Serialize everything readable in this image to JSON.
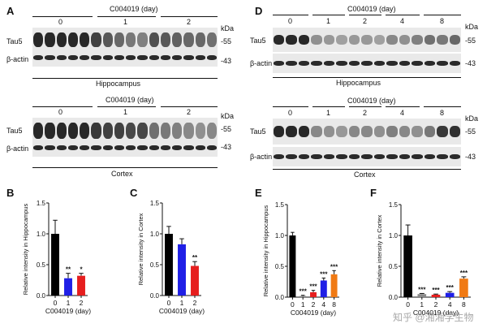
{
  "panels": {
    "A": {
      "letter": "A",
      "title": "C004019 (day)",
      "kda": "kDa",
      "protein": "Tau5",
      "loading": "β-actin",
      "mw_tau": "-55",
      "mw_actin": "-43",
      "blots": [
        {
          "region": "Hippocampus",
          "days": [
            "0",
            "1",
            "2"
          ],
          "tau_intensity": [
            1.0,
            1.0,
            1.0,
            1.0,
            1.0,
            0.85,
            0.7,
            0.6,
            0.5,
            0.45,
            0.75,
            0.7,
            0.65,
            0.6,
            0.6,
            0.55
          ]
        },
        {
          "region": "Cortex",
          "days": [
            "0",
            "1",
            "2"
          ],
          "tau_intensity": [
            1.0,
            1.0,
            1.0,
            1.0,
            1.0,
            0.9,
            0.85,
            0.85,
            0.8,
            0.8,
            0.55,
            0.5,
            0.45,
            0.4,
            0.35,
            0.4
          ]
        }
      ]
    },
    "D": {
      "letter": "D",
      "title": "C004019 (day)",
      "kda": "kDa",
      "protein": "Tau5",
      "loading": "β-actin",
      "mw_tau": "-55",
      "mw_actin": "-43",
      "blots": [
        {
          "region": "Hippocampus",
          "days": [
            "0",
            "1",
            "2",
            "4",
            "8"
          ],
          "tau_intensity": [
            1.0,
            1.0,
            1.0,
            0.35,
            0.3,
            0.25,
            0.3,
            0.3,
            0.25,
            0.4,
            0.35,
            0.45,
            0.55,
            0.5,
            0.6
          ]
        },
        {
          "region": "Cortex",
          "days": [
            "0",
            "1",
            "2",
            "4",
            "8"
          ],
          "tau_intensity": [
            1.0,
            1.0,
            1.0,
            0.4,
            0.35,
            0.3,
            0.4,
            0.4,
            0.35,
            0.45,
            0.4,
            0.35,
            0.5,
            0.9,
            0.95
          ]
        }
      ]
    }
  },
  "chart_data": [
    {
      "panel": "B",
      "type": "bar",
      "ylabel": "Relative intensity in Hippocampus",
      "xlabel": "C004019  (day)",
      "categories": [
        "0",
        "1",
        "2"
      ],
      "values": [
        1.0,
        0.28,
        0.32
      ],
      "errors": [
        0.22,
        0.08,
        0.04
      ],
      "colors": [
        "#000000",
        "#1f1fe6",
        "#e61e1e"
      ],
      "significance": [
        "",
        "**",
        "*"
      ],
      "ylim": [
        0,
        1.5
      ],
      "yticks": [
        "0.0",
        "0.5",
        "1.0",
        "1.5"
      ]
    },
    {
      "panel": "C",
      "type": "bar",
      "ylabel": "Relative intensity in Cortex",
      "xlabel": "C004019  (day)",
      "categories": [
        "0",
        "1",
        "2"
      ],
      "values": [
        1.0,
        0.83,
        0.48
      ],
      "errors": [
        0.12,
        0.09,
        0.07
      ],
      "colors": [
        "#000000",
        "#1f1fe6",
        "#e61e1e"
      ],
      "significance": [
        "",
        "",
        "**"
      ],
      "ylim": [
        0,
        1.5
      ],
      "yticks": [
        "0.0",
        "0.5",
        "1.0",
        "1.5"
      ]
    },
    {
      "panel": "E",
      "type": "bar",
      "ylabel": "Relative intensity in Hippocampus",
      "xlabel": "C004019  (day)",
      "categories": [
        "0",
        "1",
        "2",
        "4",
        "8"
      ],
      "values": [
        1.0,
        0.02,
        0.08,
        0.27,
        0.37
      ],
      "errors": [
        0.05,
        0.01,
        0.03,
        0.04,
        0.06
      ],
      "colors": [
        "#000000",
        "#8a8a8a",
        "#e61e1e",
        "#1f1fe6",
        "#f07a14"
      ],
      "significance": [
        "",
        "***",
        "***",
        "***",
        "***"
      ],
      "ylim": [
        0,
        1.5
      ],
      "yticks": [
        "0.0",
        "0.5",
        "1.0",
        "1.5"
      ]
    },
    {
      "panel": "F",
      "type": "bar",
      "ylabel": "Relative intensity in Cortex",
      "xlabel": "C004019  (day)",
      "categories": [
        "0",
        "1",
        "2",
        "4",
        "8"
      ],
      "values": [
        1.0,
        0.05,
        0.04,
        0.07,
        0.3
      ],
      "errors": [
        0.17,
        0.01,
        0.01,
        0.02,
        0.03
      ],
      "colors": [
        "#000000",
        "#8a8a8a",
        "#e61e1e",
        "#1f1fe6",
        "#f07a14"
      ],
      "significance": [
        "",
        "***",
        "***",
        "***",
        "***"
      ],
      "ylim": [
        0,
        1.5
      ],
      "yticks": [
        "0.0",
        "0.5",
        "1.0",
        "1.5"
      ]
    }
  ],
  "watermark": {
    "text": "知乎 @湘湘学生物"
  }
}
